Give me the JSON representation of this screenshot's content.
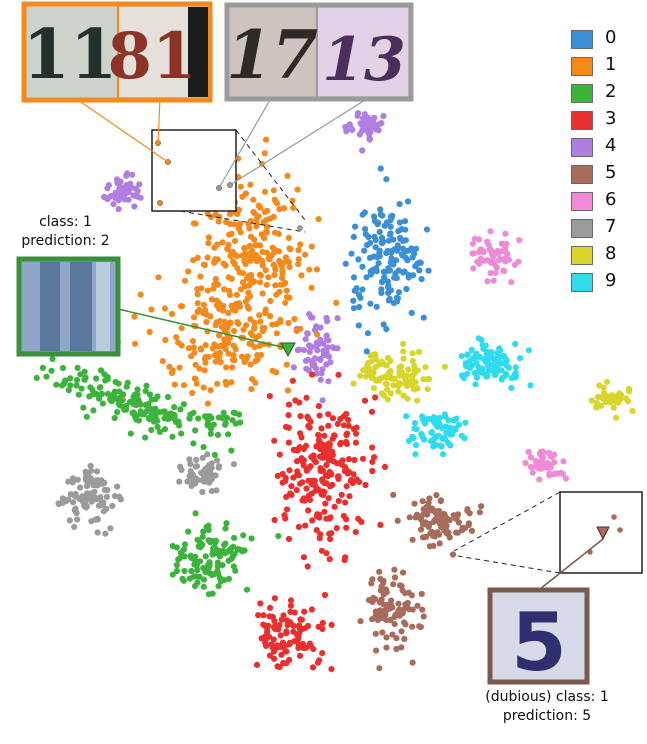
{
  "chart_data": {
    "type": "scatter",
    "legend": {
      "placement": "top-right",
      "entries": [
        {
          "label": "0",
          "color": "#3b8fd4"
        },
        {
          "label": "1",
          "color": "#f28a1d"
        },
        {
          "label": "2",
          "color": "#3cb33c"
        },
        {
          "label": "3",
          "color": "#e8312f"
        },
        {
          "label": "4",
          "color": "#b07ee0"
        },
        {
          "label": "5",
          "color": "#a86c5c"
        },
        {
          "label": "6",
          "color": "#f08ad6"
        },
        {
          "label": "7",
          "color": "#9b9b9b"
        },
        {
          "label": "8",
          "color": "#d8d62c"
        },
        {
          "label": "9",
          "color": "#2fdcef"
        }
      ]
    },
    "axes_visible": false,
    "grid": false,
    "annotations": [
      {
        "line1": "class: 1",
        "line2": "prediction: 2",
        "marker_color": "#3cb33c",
        "thumbnail_frame_color": "#3a8f3a"
      },
      {
        "line1": "(dubious) class: 1",
        "line2": "prediction: 5",
        "marker_color": "#a86c5c",
        "thumbnail_frame_color": "#7a5a4d"
      }
    ],
    "insets": [
      {
        "frame_color": "#f28a1d",
        "thumbnail_digits": [
          "11",
          "81"
        ]
      },
      {
        "frame_color": "#9b9b9b",
        "thumbnail_digits": [
          "17",
          "13"
        ]
      }
    ]
  }
}
